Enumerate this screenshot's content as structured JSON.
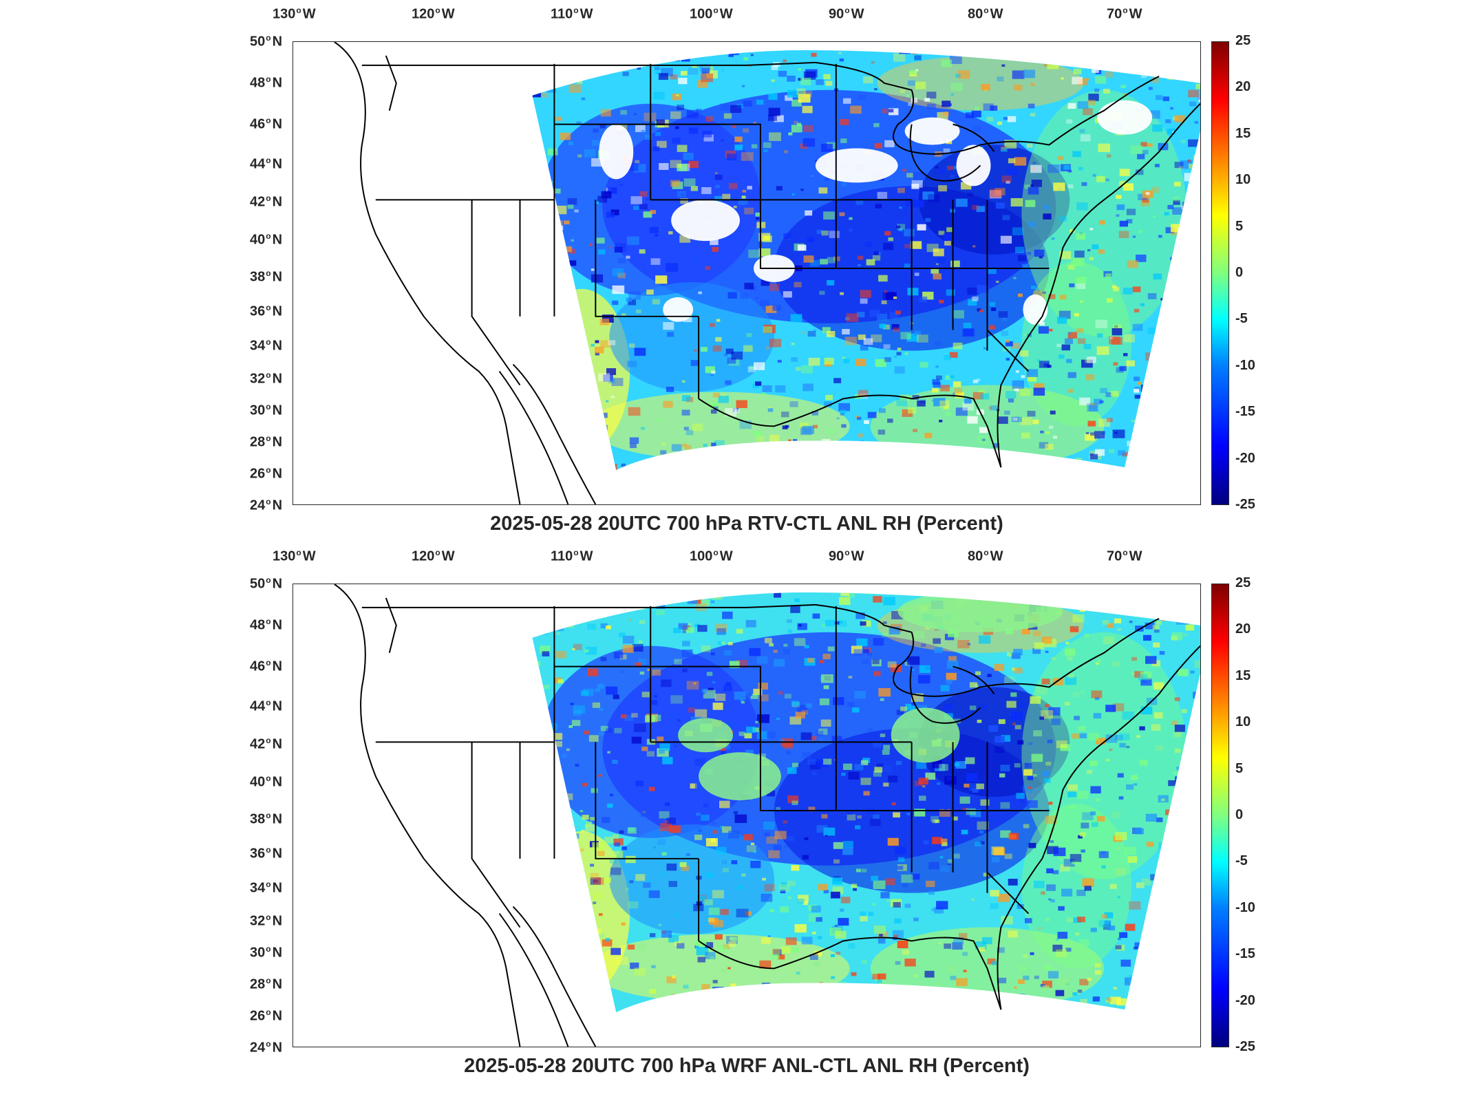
{
  "colors": {
    "coast": "#000000",
    "colormap": [
      "#00007f",
      "#0000ff",
      "#007fff",
      "#00ffff",
      "#7fff7f",
      "#ffff00",
      "#ff7f00",
      "#ff0000",
      "#7f0000"
    ]
  },
  "lon_ticks": [
    "130",
    "120",
    "110",
    "100",
    "90",
    "80",
    "70"
  ],
  "lon_suffix": "W",
  "lat_ticks": [
    "50",
    "48",
    "46",
    "44",
    "42",
    "40",
    "38",
    "36",
    "34",
    "32",
    "30",
    "28",
    "26",
    "24"
  ],
  "lat_suffix": "N",
  "colorbar_ticks": [
    "25",
    "20",
    "15",
    "10",
    "5",
    "0",
    "-5",
    "-10",
    "-15",
    "-20",
    "-25"
  ],
  "panels": [
    {
      "title": "2025-05-28 20UTC 700 hPa RTV-CTL ANL RH (Percent)"
    },
    {
      "title": "2025-05-28 20UTC 700 hPa WRF ANL-CTL ANL RH (Percent)"
    }
  ]
}
